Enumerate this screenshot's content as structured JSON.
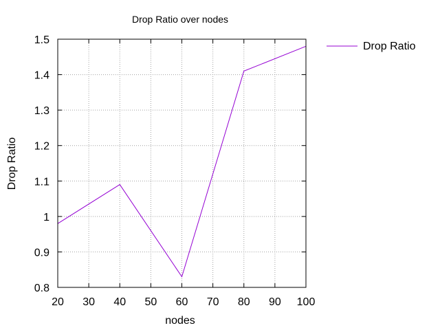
{
  "chart_data": {
    "type": "line",
    "title": "Drop Ratio over nodes",
    "xlabel": "nodes",
    "ylabel": "Drop Ratio",
    "xlim": [
      20,
      100
    ],
    "ylim": [
      0.8,
      1.5
    ],
    "x_ticks": [
      20,
      30,
      40,
      50,
      60,
      70,
      80,
      90,
      100
    ],
    "y_ticks": [
      0.8,
      0.9,
      1.0,
      1.1,
      1.2,
      1.3,
      1.4,
      1.5
    ],
    "x_tick_labels": [
      "20",
      "30",
      "40",
      "50",
      "60",
      "70",
      "80",
      "90",
      "100"
    ],
    "y_tick_labels": [
      "0.8",
      "0.9",
      "1",
      "1.1",
      "1.2",
      "1.3",
      "1.4",
      "1.5"
    ],
    "grid": true,
    "legend_position": "outside-right",
    "series": [
      {
        "name": "Drop Ratio",
        "color": "#9400d3",
        "x": [
          20,
          40,
          60,
          80,
          100
        ],
        "y": [
          0.98,
          1.09,
          0.83,
          1.41,
          1.48
        ]
      }
    ]
  }
}
